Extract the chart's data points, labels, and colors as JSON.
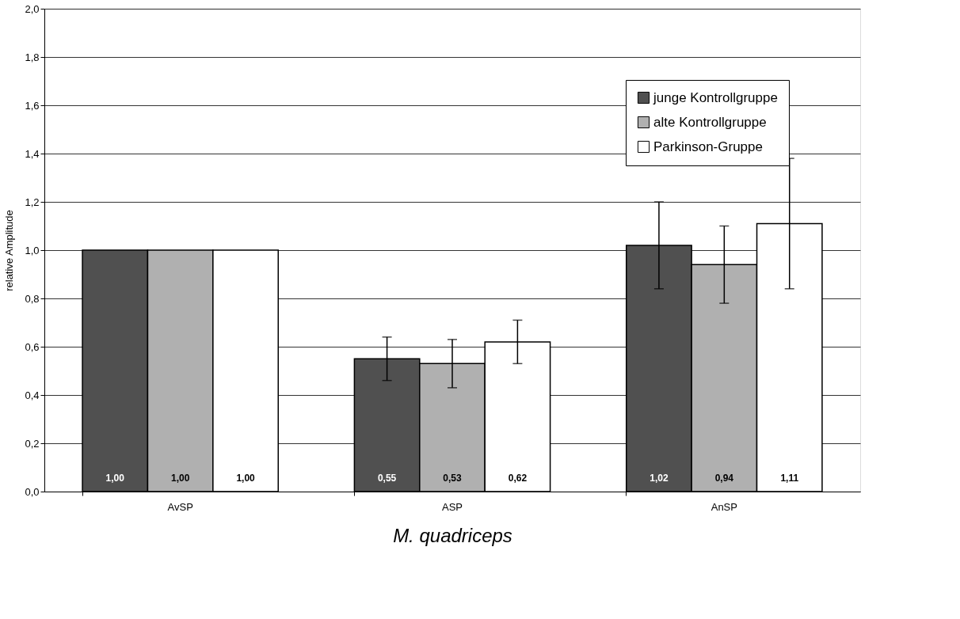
{
  "chart_data": {
    "type": "bar",
    "xlabel": "M. quadriceps",
    "ylabel": "relative Amplitude",
    "categories": [
      "AvSP",
      "ASP",
      "AnSP"
    ],
    "series": [
      {
        "name": "junge Kontrollgruppe",
        "color": "#505050",
        "values": [
          1.0,
          0.55,
          1.02
        ],
        "errors": [
          null,
          0.09,
          0.18
        ],
        "value_labels": [
          "1,00",
          "0,55",
          "1,02"
        ]
      },
      {
        "name": "alte Kontrollgruppe",
        "color": "#b0b0b0",
        "values": [
          1.0,
          0.53,
          0.94
        ],
        "errors": [
          null,
          0.1,
          0.16
        ],
        "value_labels": [
          "1,00",
          "0,53",
          "0,94"
        ]
      },
      {
        "name": "Parkinson-Gruppe",
        "color": "#ffffff",
        "values": [
          1.0,
          0.62,
          1.11
        ],
        "errors": [
          null,
          0.09,
          0.27
        ],
        "value_labels": [
          "1,00",
          "0,62",
          "1,11"
        ]
      }
    ],
    "ylim": [
      0,
      2.0
    ],
    "yticks": [
      {
        "value": 0,
        "label": "0,0"
      },
      {
        "value": 0.2,
        "label": "0,2"
      },
      {
        "value": 0.4,
        "label": "0,4"
      },
      {
        "value": 0.6,
        "label": "0,6"
      },
      {
        "value": 0.8,
        "label": "0,8"
      },
      {
        "value": 1.0,
        "label": "1,0"
      },
      {
        "value": 1.2,
        "label": "1,2"
      },
      {
        "value": 1.4,
        "label": "1,4"
      },
      {
        "value": 1.6,
        "label": "1,6"
      },
      {
        "value": 1.8,
        "label": "1,8"
      },
      {
        "value": 2.0,
        "label": "2,0"
      }
    ],
    "grid": "y",
    "legend": "top right"
  }
}
